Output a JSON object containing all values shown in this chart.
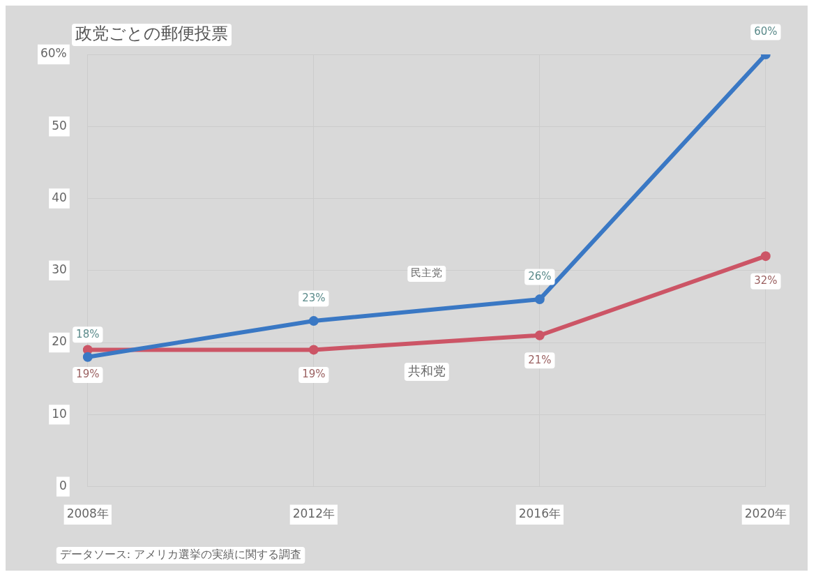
{
  "chart_data": {
    "type": "line",
    "title": "政党ごとの郵便投票",
    "categories": [
      "2008年",
      "2012年",
      "2016年",
      "2020年"
    ],
    "series": [
      {
        "name": "民主党",
        "color": "#3a78c4",
        "values": [
          18,
          23,
          26,
          60
        ],
        "value_labels": [
          "18%",
          "23%",
          "26%",
          "60%"
        ]
      },
      {
        "name": "共和党",
        "color": "#cc5566",
        "values": [
          19,
          19,
          21,
          32
        ],
        "value_labels": [
          "19%",
          "19%",
          "21%",
          "32%"
        ]
      }
    ],
    "ylim": [
      0,
      60
    ],
    "yticks": [
      0,
      10,
      20,
      30,
      40,
      50,
      {
        "value": 60,
        "label": "60%"
      }
    ],
    "grid": true,
    "legend": false,
    "marker": "circle",
    "line_style": "solid",
    "annotations": [
      "データソース: アメリカ選挙の実績に関する調査"
    ]
  }
}
